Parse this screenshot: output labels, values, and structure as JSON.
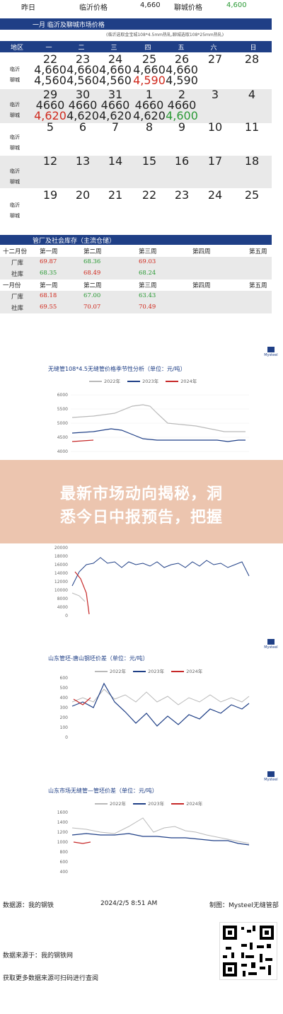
{
  "top_row": {
    "label1": "昨日",
    "label2": "临沂价格",
    "val1": "4,660",
    "label3": "聊城价格",
    "val2": "4,600"
  },
  "section1": {
    "title": "一月  临沂及聊城市场价格",
    "note": "(临沂选取金宝城108*4.5mm热轧,聊城选取108*25mm热轧)",
    "header": [
      "地区",
      "一",
      "二",
      "三",
      "四",
      "五",
      "六",
      "日"
    ],
    "row_labels": {
      "linyi": "临沂",
      "liaocheng": "聊城"
    },
    "weeks": [
      {
        "days": [
          "22",
          "23",
          "24",
          "25",
          "26",
          "27",
          "28"
        ],
        "linyi": [
          "4,660",
          "4,660",
          "4,660",
          "4,660",
          "4,660",
          "",
          ""
        ],
        "liaocheng": [
          "4,560",
          "4,560",
          "4,560",
          "4,590",
          "4,590",
          "",
          ""
        ]
      },
      {
        "days": [
          "29",
          "30",
          "31",
          "1",
          "2",
          "3",
          "4"
        ],
        "linyi": [
          "4660",
          "4660",
          "4660",
          "4660",
          "4660",
          "",
          ""
        ],
        "liaocheng": [
          "4,620",
          "4,620",
          "4,620",
          "4,620",
          "4,600",
          "",
          ""
        ]
      },
      {
        "days": [
          "5",
          "6",
          "7",
          "8",
          "9",
          "10",
          "11"
        ],
        "linyi": [],
        "liaocheng": []
      },
      {
        "days": [
          "12",
          "13",
          "14",
          "15",
          "16",
          "17",
          "18"
        ],
        "linyi": [],
        "liaocheng": []
      },
      {
        "days": [
          "19",
          "20",
          "21",
          "22",
          "23",
          "24",
          "25"
        ],
        "linyi": [],
        "liaocheng": []
      }
    ]
  },
  "section2": {
    "title": "管厂及社会库存（主流仓储）",
    "rows": [
      {
        "label": "十二月份",
        "cells": [
          "第一周",
          "第二周",
          "第三周",
          "第四周",
          "第五周"
        ]
      },
      {
        "label": "厂库",
        "cells": [
          "69.87",
          "68.36",
          "69.03",
          "",
          ""
        ]
      },
      {
        "label": "社库",
        "cells": [
          "68.35",
          "68.49",
          "68.24",
          "",
          ""
        ]
      },
      {
        "label": "一月份",
        "cells": [
          "第一周",
          "第二周",
          "第三周",
          "第四周",
          "第五周"
        ]
      },
      {
        "label": "厂库",
        "cells": [
          "68.18",
          "67.00",
          "63.43",
          "",
          ""
        ]
      },
      {
        "label": "社库",
        "cells": [
          "69.55",
          "70.07",
          "70.49",
          "",
          ""
        ]
      }
    ]
  },
  "logo_text": "Mysteel",
  "chart1": {
    "title": "无缝管108*4.5无缝管价格季节性分析（单位：元/吨）",
    "legend": [
      "2022年",
      "2023年",
      "2024年"
    ]
  },
  "chart3": {
    "title": "山东管坯-唐山钢坯价差（单位：元/吨）",
    "legend": [
      "2022年",
      "2023年",
      "2024年"
    ]
  },
  "chart4": {
    "title": "山东市场无缝管—管坯价差（单位：元/吨）",
    "legend": [
      "2022年",
      "2023年",
      "2024年"
    ]
  },
  "overlay": {
    "line1": "最新市场动向揭秘，洞",
    "line2": "悉今日中报预告，把握"
  },
  "footer": {
    "source": "数据源：我的钢铁",
    "datetime": "2024/2/5 8:51 AM",
    "maker": "制图：Mysteel无缝管部"
  },
  "bottom": {
    "source": "数据来源于：我的钢铁网",
    "more": "获取更多数据来源可扫码进行查阅"
  },
  "colors": {
    "bar": "#1f3f86",
    "red": "#d02a1e",
    "green": "#2b9a36",
    "y2022": "#b9b9b9",
    "y2023": "#1f3f86",
    "y2024": "#c62828"
  }
}
